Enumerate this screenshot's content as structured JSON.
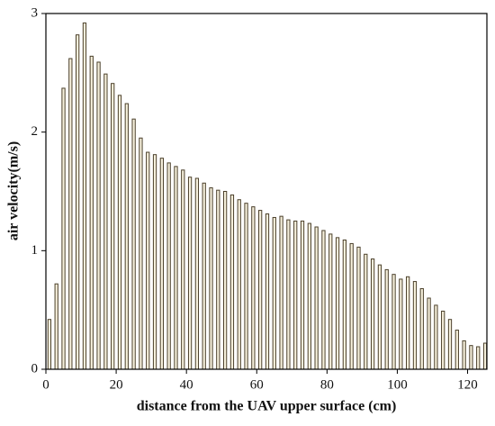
{
  "chart_data": {
    "type": "bar",
    "xlabel": "distance from the UAV upper surface (cm)",
    "ylabel": "air velocity(m/s)",
    "x": [
      1,
      3,
      5,
      7,
      9,
      11,
      13,
      15,
      17,
      19,
      21,
      23,
      25,
      27,
      29,
      31,
      33,
      35,
      37,
      39,
      41,
      43,
      45,
      47,
      49,
      51,
      53,
      55,
      57,
      59,
      61,
      63,
      65,
      67,
      69,
      71,
      73,
      75,
      77,
      79,
      81,
      83,
      85,
      87,
      89,
      91,
      93,
      95,
      97,
      99,
      101,
      103,
      105,
      107,
      109,
      111,
      113,
      115,
      117,
      119,
      121,
      123,
      125
    ],
    "values": [
      0.42,
      0.72,
      2.37,
      2.62,
      2.82,
      2.92,
      2.64,
      2.59,
      2.49,
      2.41,
      2.31,
      2.24,
      2.11,
      1.95,
      1.83,
      1.81,
      1.78,
      1.74,
      1.71,
      1.68,
      1.62,
      1.61,
      1.57,
      1.53,
      1.51,
      1.5,
      1.47,
      1.43,
      1.4,
      1.37,
      1.34,
      1.31,
      1.28,
      1.29,
      1.26,
      1.25,
      1.25,
      1.23,
      1.2,
      1.17,
      1.14,
      1.11,
      1.09,
      1.06,
      1.03,
      0.97,
      0.93,
      0.88,
      0.84,
      0.8,
      0.76,
      0.78,
      0.74,
      0.68,
      0.6,
      0.54,
      0.49,
      0.42,
      0.33,
      0.24,
      0.2,
      0.19,
      0.22
    ],
    "color": "#f6f0dc",
    "edge_color": "#4a3f2a",
    "xlim": [
      0,
      125.5
    ],
    "xticks": [
      0,
      20,
      40,
      60,
      80,
      100,
      120
    ],
    "ylim": [
      0,
      3
    ],
    "yticks": [
      0,
      1,
      2,
      3
    ]
  }
}
